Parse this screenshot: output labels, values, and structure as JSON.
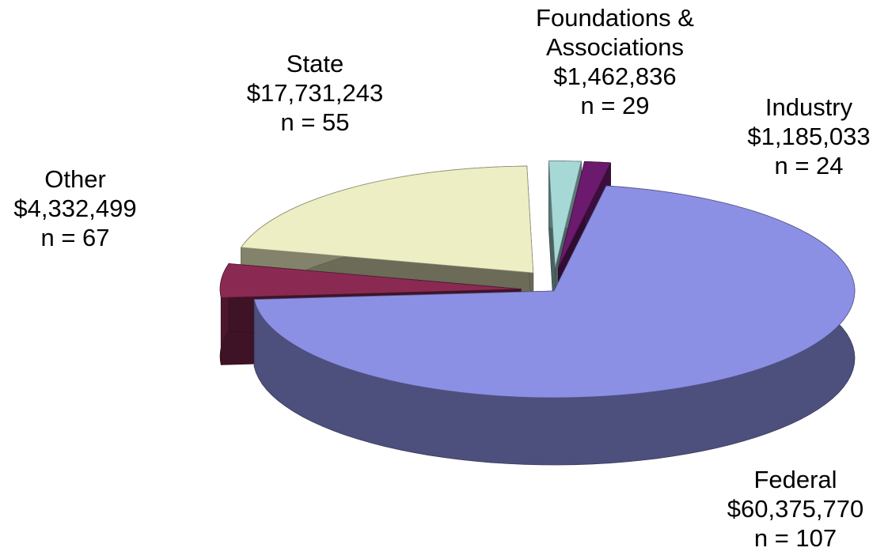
{
  "chart_data": {
    "type": "pie",
    "categories": [
      "Federal",
      "Other",
      "State",
      "Foundations & Associations",
      "Industry"
    ],
    "values": [
      60375770,
      4332499,
      17731243,
      1462836,
      1185033
    ],
    "value_labels": [
      "$60,375,770",
      "$4,332,499",
      "$17,731,243",
      "$1,462,836",
      "$1,185,033"
    ],
    "counts": [
      "n = 107",
      "n = 67",
      "n = 55",
      "n = 29",
      "n = 24"
    ],
    "colors": [
      "#8c90e4",
      "#8a2a52",
      "#eeeec4",
      "#a6d8d6",
      "#6c1a6e"
    ]
  }
}
